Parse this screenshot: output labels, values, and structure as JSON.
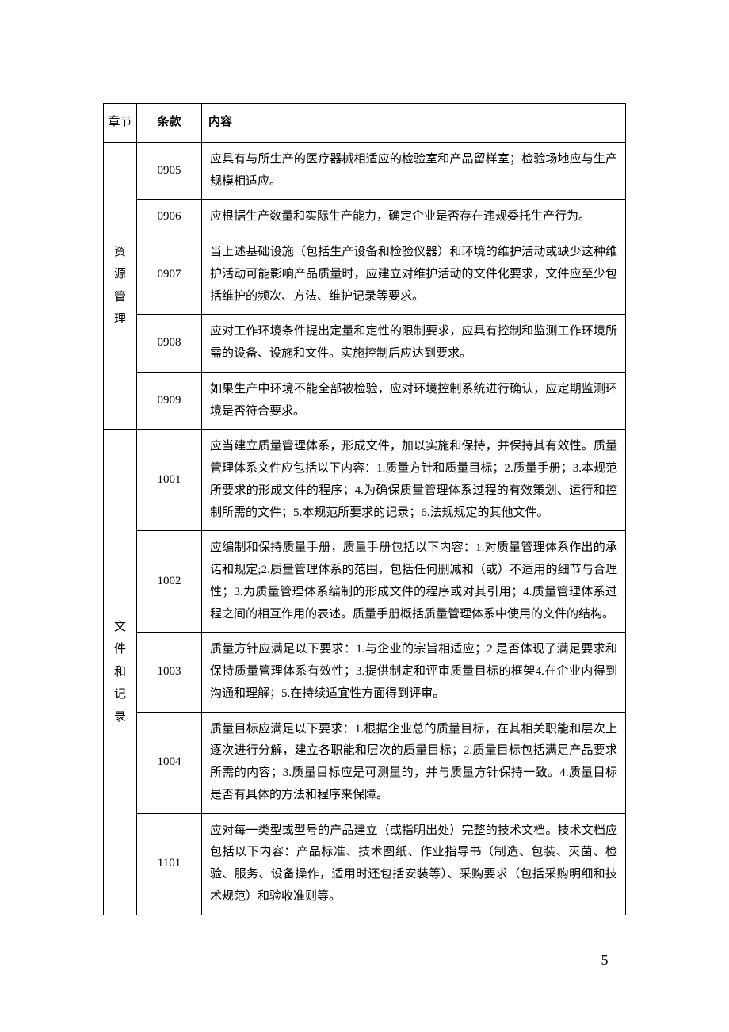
{
  "headers": {
    "chapter": "章节",
    "clause": "条款",
    "content": "内容"
  },
  "sections": [
    {
      "chapter": "资源管理",
      "rows": [
        {
          "clause": "0905",
          "content": "应具有与所生产的医疗器械相适应的检验室和产品留样室；检验场地应与生产规模相适应。"
        },
        {
          "clause": "0906",
          "content": "应根据生产数量和实际生产能力，确定企业是否存在违规委托生产行为。"
        },
        {
          "clause": "0907",
          "content": "当上述基础设施（包括生产设备和检验仪器）和环境的维护活动或缺少这种维护活动可能影响产品质量时，应建立对维护活动的文件化要求，文件应至少包括维护的频次、方法、维护记录等要求。"
        },
        {
          "clause": "0908",
          "content": "应对工作环境条件提出定量和定性的限制要求，应具有控制和监测工作环境所需的设备、设施和文件。实施控制后应达到要求。"
        },
        {
          "clause": "0909",
          "content": "如果生产中环境不能全部被检验，应对环境控制系统进行确认，应定期监测环境是否符合要求。"
        }
      ]
    },
    {
      "chapter": "文件和记录",
      "rows": [
        {
          "clause": "1001",
          "content": "应当建立质量管理体系，形成文件，加以实施和保持，并保持其有效性。质量管理体系文件应包括以下内容：1.质量方针和质量目标；2.质量手册；3.本规范所要求的形成文件的程序；4.为确保质量管理体系过程的有效策划、运行和控制所需的文件；5.本规范所要求的记录；6.法规规定的其他文件。"
        },
        {
          "clause": "1002",
          "content": "应编制和保持质量手册，质量手册包括以下内容：1.对质量管理体系作出的承诺和规定;2.质量管理体系的范围，包括任何删减和（或）不适用的细节与合理性；3.为质量管理体系编制的形成文件的程序或对其引用；4.质量管理体系过程之间的相互作用的表述。质量手册概括质量管理体系中使用的文件的结构。"
        },
        {
          "clause": "1003",
          "content": "质量方针应满足以下要求：1.与企业的宗旨相适应；2.是否体现了满足要求和保持质量管理体系有效性；3.提供制定和评审质量目标的框架4.在企业内得到沟通和理解；5.在持续适宜性方面得到评审。"
        },
        {
          "clause": "1004",
          "content": "质量目标应满足以下要求：1.根据企业总的质量目标，在其相关职能和层次上逐次进行分解，建立各职能和层次的质量目标；2.质量目标包括满足产品要求所需的内容；3.质量目标应是可测量的，并与质量方针保持一致。4.质量目标是否有具体的方法和程序来保障。"
        },
        {
          "clause": "1101",
          "content": "应对每一类型或型号的产品建立（或指明出处）完整的技术文档。技术文档应包括以下内容：产品标准、技术图纸、作业指导书（制造、包装、灭菌、检验、服务、设备操作，适用时还包括安装等）、采购要求（包括采购明细和技术规范）和验收准则等。"
        }
      ]
    }
  ],
  "page_number": "— 5 —"
}
